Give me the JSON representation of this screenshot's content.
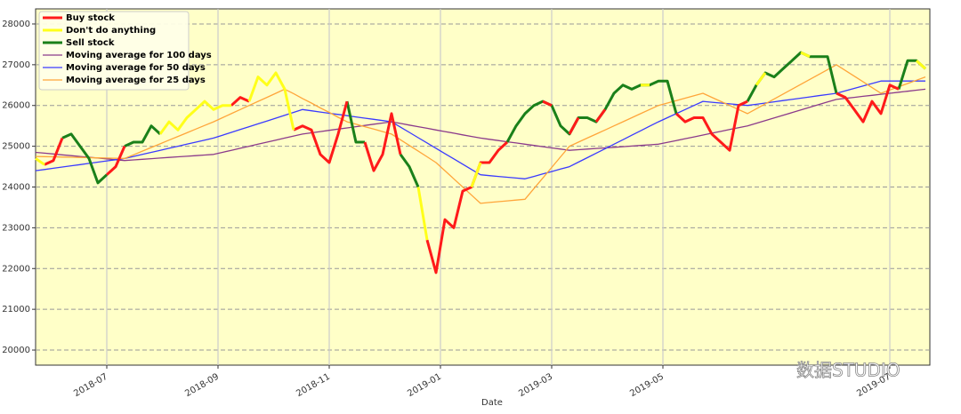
{
  "chart_data": {
    "type": "line",
    "x_label": "Date",
    "watermark": "数据STUDIO",
    "legend": "upper left",
    "grid": true,
    "background": "#ffffc8",
    "categories": [
      null,
      null,
      null,
      null,
      null,
      null,
      null,
      null,
      null,
      null,
      null,
      null,
      null,
      null,
      null,
      null,
      null,
      null,
      null,
      null,
      null,
      null,
      null,
      null,
      null,
      null,
      null,
      null,
      null,
      null,
      null,
      null,
      null,
      null,
      null,
      null,
      null,
      null,
      null,
      null,
      null,
      null,
      null,
      null,
      null,
      null,
      null,
      null,
      null,
      null,
      null,
      null,
      null,
      null,
      null,
      null,
      null,
      null,
      null,
      null,
      null,
      null,
      null,
      null,
      null,
      null,
      null,
      null,
      null,
      null,
      null,
      null,
      null,
      null,
      null,
      null,
      null,
      null,
      null,
      null,
      null,
      null,
      null,
      null,
      null,
      null,
      null,
      null,
      null,
      null,
      null,
      null,
      null,
      null,
      null,
      null,
      null,
      null,
      null,
      null,
      null
    ],
    "xticks": [
      {
        "value": 8,
        "label": "2018-07"
      },
      {
        "value": 20.5,
        "label": "2018-09"
      },
      {
        "value": 33,
        "label": "2018-11"
      },
      {
        "value": 45.5,
        "label": "2019-01"
      },
      {
        "value": 58,
        "label": "2019-03"
      },
      {
        "value": 70.5,
        "label": "2019-05"
      },
      {
        "value": 96,
        "label": "2019-07"
      }
    ],
    "ylim": [
      19630,
      28370
    ],
    "yticks": [
      20000,
      21000,
      22000,
      23000,
      24000,
      25000,
      26000,
      27000,
      28000
    ],
    "series": [
      {
        "name": "Buy stock",
        "color": "#ff1a1a",
        "width": 3,
        "values": [
          null,
          24550,
          24650,
          25200,
          null,
          null,
          null,
          null,
          24300,
          24500,
          25000,
          null,
          null,
          null,
          null,
          null,
          null,
          null,
          null,
          null,
          null,
          null,
          26000,
          26200,
          26100,
          null,
          null,
          null,
          null,
          25400,
          25500,
          25400,
          24800,
          24600,
          25300,
          26100,
          null,
          25100,
          24400,
          24800,
          25800,
          24800,
          null,
          null,
          22700,
          21900,
          23200,
          23000,
          23900,
          24000,
          24600,
          24600,
          24900,
          25100,
          null,
          null,
          null,
          26100,
          26000,
          null,
          25300,
          25700,
          null,
          25600,
          25900,
          null,
          null,
          null,
          null,
          null,
          null,
          null,
          25800,
          25600,
          25700,
          25700,
          25300,
          25100,
          24900,
          26000,
          26100,
          null,
          null,
          null,
          null,
          null,
          null,
          null,
          null,
          null,
          26300,
          26200,
          25900,
          25600,
          26100,
          25800,
          26500,
          26400,
          null,
          null,
          null
        ]
      },
      {
        "name": "Don't do anything",
        "color": "#ffff1a",
        "width": 3,
        "values": [
          24700,
          24550,
          null,
          null,
          null,
          null,
          null,
          null,
          null,
          null,
          null,
          null,
          null,
          null,
          25300,
          25600,
          25400,
          25700,
          25900,
          26100,
          25900,
          26000,
          26000,
          null,
          26100,
          26700,
          26500,
          26800,
          26400,
          25400,
          null,
          null,
          null,
          null,
          null,
          null,
          null,
          null,
          null,
          null,
          null,
          null,
          null,
          24000,
          22700,
          null,
          null,
          null,
          null,
          24000,
          24600,
          null,
          null,
          null,
          null,
          null,
          null,
          null,
          null,
          null,
          null,
          null,
          null,
          null,
          null,
          null,
          null,
          null,
          26500,
          26500,
          null,
          null,
          null,
          null,
          null,
          null,
          null,
          null,
          null,
          null,
          null,
          26500,
          26800,
          null,
          null,
          null,
          27300,
          27200,
          null,
          null,
          null,
          null,
          null,
          null,
          null,
          null,
          null,
          null,
          null,
          27100,
          26900
        ]
      },
      {
        "name": "Sell stock",
        "color": "#1a801a",
        "width": 3,
        "values": [
          null,
          null,
          null,
          25200,
          25300,
          25000,
          24700,
          24100,
          24300,
          null,
          25000,
          25100,
          25100,
          25500,
          25300,
          null,
          null,
          null,
          null,
          null,
          null,
          null,
          null,
          null,
          null,
          null,
          null,
          null,
          null,
          null,
          null,
          null,
          null,
          null,
          null,
          26100,
          25100,
          25100,
          null,
          null,
          null,
          24800,
          24500,
          24000,
          null,
          null,
          null,
          null,
          null,
          null,
          null,
          null,
          null,
          25100,
          25500,
          25800,
          26000,
          26100,
          26000,
          25500,
          25300,
          25700,
          25700,
          25600,
          25900,
          26300,
          26500,
          26400,
          26500,
          26500,
          26600,
          26600,
          25800,
          null,
          null,
          null,
          null,
          null,
          null,
          null,
          26100,
          26500,
          26800,
          26700,
          26900,
          27100,
          27300,
          27200,
          27200,
          27200,
          26300,
          null,
          null,
          null,
          null,
          null,
          null,
          26400,
          27100,
          27100,
          26900
        ]
      },
      {
        "name": "Moving average for 100 days",
        "color": "#8b3a8b",
        "width": 1.3,
        "values": [
          24850,
          24830,
          24810,
          24790,
          24770,
          24750,
          24730,
          24710,
          24690,
          24670,
          24650,
          24665,
          24680,
          24695,
          24710,
          24725,
          24740,
          24755,
          24770,
          24785,
          24800,
          24850,
          24900,
          24950,
          25000,
          25050,
          25100,
          25150,
          25200,
          25250,
          25300,
          25330,
          25360,
          25390,
          25420,
          25450,
          25480,
          25510,
          25540,
          25570,
          25600,
          25560,
          25520,
          25480,
          25440,
          25400,
          25360,
          25320,
          25280,
          25240,
          25200,
          25170,
          25140,
          25110,
          25080,
          25050,
          25020,
          24990,
          24960,
          24930,
          24900,
          24915,
          24930,
          24945,
          24960,
          24975,
          24990,
          25005,
          25020,
          25035,
          25050,
          25095,
          25140,
          25185,
          25230,
          25275,
          25320,
          25365,
          25410,
          25455,
          25500,
          25565,
          25630,
          25695,
          25760,
          25825,
          25890,
          25955,
          26020,
          26085,
          26150,
          26175,
          26200,
          26225,
          26250,
          26275,
          26300,
          26325,
          26350,
          26375,
          26400
        ]
      },
      {
        "name": "Moving average for 50 days",
        "color": "#3a3aff",
        "width": 1.3,
        "values": [
          24400,
          24430,
          24460,
          24490,
          24520,
          24550,
          24580,
          24610,
          24640,
          24670,
          24700,
          24750,
          24800,
          24850,
          24900,
          24950,
          25000,
          25050,
          25100,
          25150,
          25200,
          25270,
          25340,
          25410,
          25480,
          25550,
          25620,
          25690,
          25760,
          25830,
          25900,
          25870,
          25840,
          25810,
          25780,
          25750,
          25720,
          25690,
          25660,
          25630,
          25600,
          25470,
          25340,
          25210,
          25080,
          24950,
          24820,
          24690,
          24560,
          24430,
          24300,
          24280,
          24260,
          24240,
          24220,
          24200,
          24260,
          24320,
          24380,
          24440,
          24500,
          24610,
          24720,
          24830,
          24940,
          25050,
          25160,
          25270,
          25380,
          25490,
          25600,
          25700,
          25800,
          25900,
          26000,
          26100,
          26080,
          26060,
          26040,
          26020,
          26000,
          26030,
          26060,
          26090,
          26120,
          26150,
          26180,
          26210,
          26240,
          26270,
          26300,
          26360,
          26420,
          26480,
          26540,
          26600,
          26600,
          26600,
          26600,
          26600,
          26600
        ]
      },
      {
        "name": "Moving average for 25 days",
        "color": "#ffa53a",
        "width": 1.3,
        "values": [
          24750,
          24745,
          24740,
          24735,
          24730,
          24725,
          24720,
          24715,
          24710,
          24705,
          24700,
          24790,
          24880,
          24970,
          25060,
          25150,
          25240,
          25330,
          25420,
          25510,
          25600,
          25700,
          25800,
          25900,
          26000,
          26100,
          26200,
          26300,
          26400,
          26290,
          26170,
          26060,
          25940,
          25830,
          25710,
          25600,
          25540,
          25480,
          25420,
          25360,
          25300,
          25160,
          25020,
          24880,
          24740,
          24600,
          24400,
          24200,
          24000,
          23800,
          23600,
          23620,
          23640,
          23660,
          23680,
          23700,
          23960,
          24220,
          24480,
          24740,
          25000,
          25100,
          25200,
          25300,
          25400,
          25500,
          25600,
          25700,
          25800,
          25900,
          26000,
          26060,
          26120,
          26180,
          26240,
          26300,
          26200,
          26100,
          26000,
          25900,
          25800,
          25920,
          26040,
          26160,
          26280,
          26400,
          26520,
          26640,
          26760,
          26880,
          27000,
          26860,
          26720,
          26580,
          26440,
          26300,
          26380,
          26460,
          26540,
          26620,
          26700
        ]
      }
    ]
  }
}
